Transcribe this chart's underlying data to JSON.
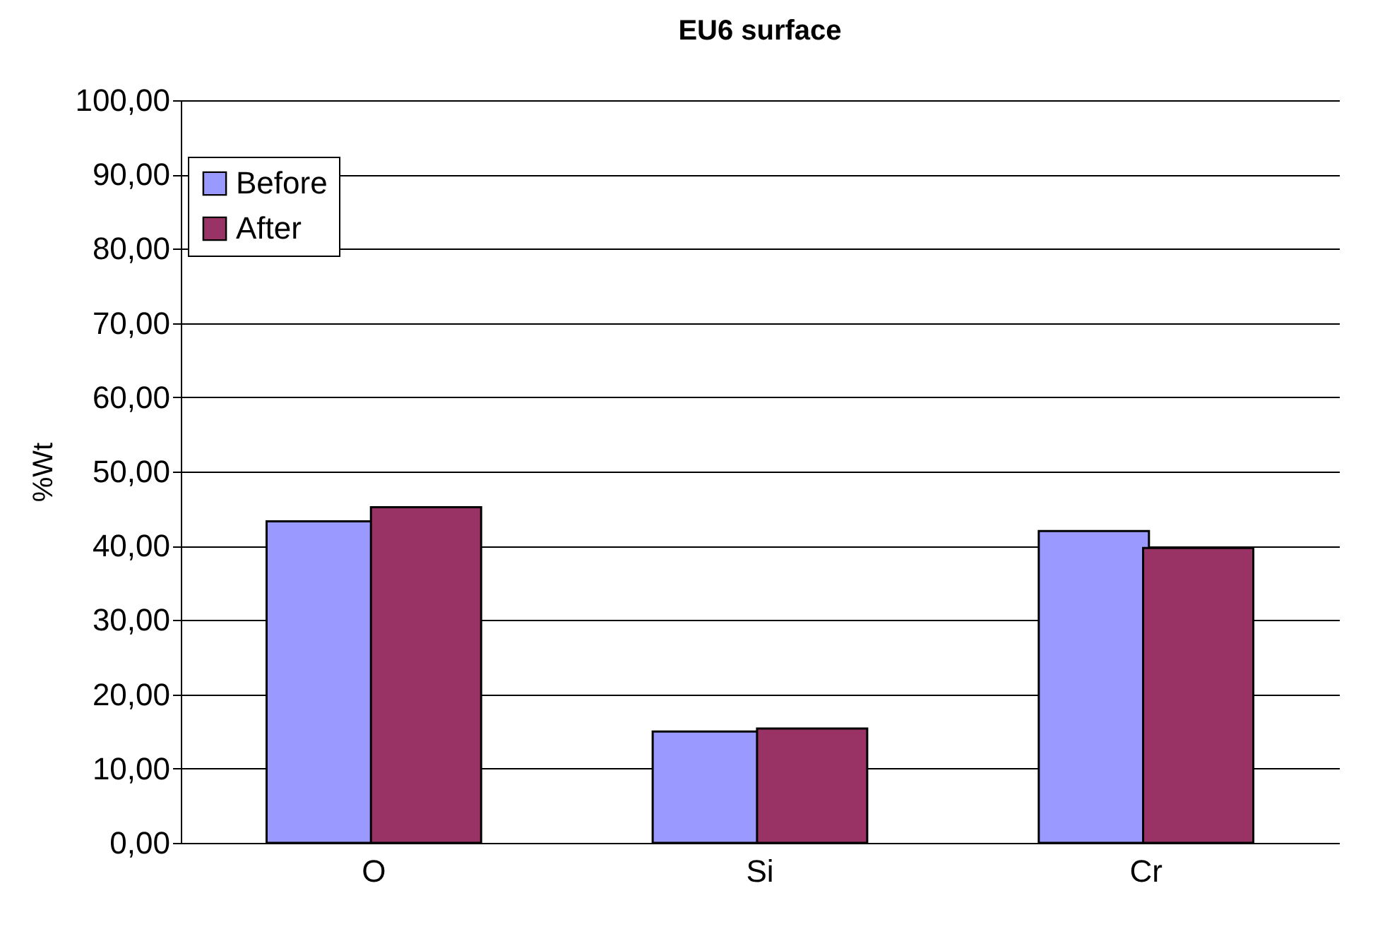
{
  "chart_data": {
    "type": "bar",
    "title": "EU6 surface",
    "ylabel": "%Wt",
    "categories": [
      "O",
      "Si",
      "Cr"
    ],
    "series": [
      {
        "name": "Before",
        "color": "#9999ff",
        "values": [
          43.3,
          15.0,
          42.0
        ]
      },
      {
        "name": "After",
        "color": "#993366",
        "values": [
          45.2,
          15.4,
          39.7
        ]
      }
    ],
    "ylim": [
      0,
      100
    ],
    "yticks": [
      {
        "value": 0,
        "label": "0,00"
      },
      {
        "value": 10,
        "label": "10,00"
      },
      {
        "value": 20,
        "label": "20,00"
      },
      {
        "value": 30,
        "label": "30,00"
      },
      {
        "value": 40,
        "label": "40,00"
      },
      {
        "value": 50,
        "label": "50,00"
      },
      {
        "value": 60,
        "label": "60,00"
      },
      {
        "value": 70,
        "label": "70,00"
      },
      {
        "value": 80,
        "label": "80,00"
      },
      {
        "value": 90,
        "label": "90,00"
      },
      {
        "value": 100,
        "label": "100,00"
      }
    ],
    "grid": "y",
    "legend": "top left"
  }
}
